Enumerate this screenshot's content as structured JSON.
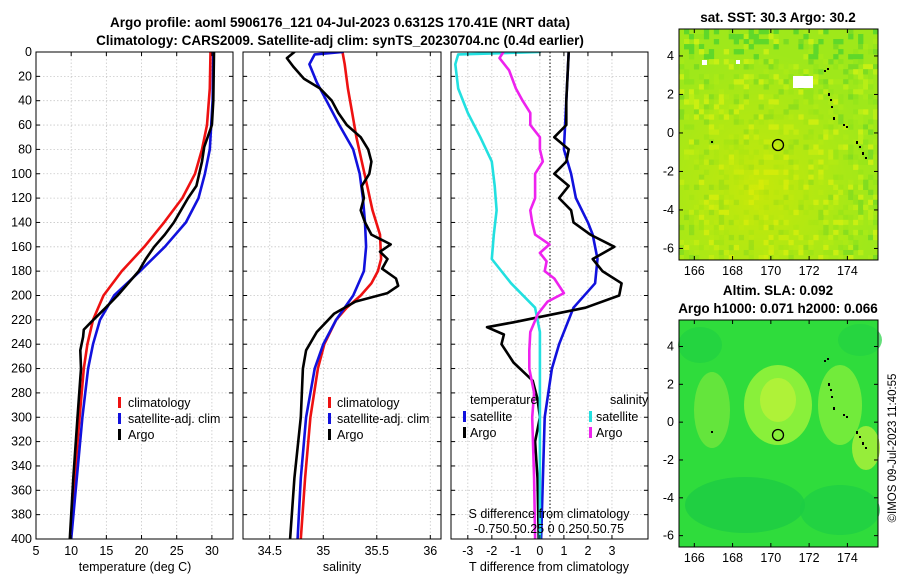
{
  "header": {
    "title_line1": "Argo profile: aoml 5906176_121 04-Jul-2023 0.6312S 170.41E (NRT data)",
    "title_line2": "Climatology: CARS2009. Satellite-adj clim: synTS_20230704.nc (0.4d earlier)"
  },
  "watermark": "©IMOS 09-Jul-2023 11:40:55",
  "colors": {
    "climatology": "#ee1111",
    "satellite": "#1111dd",
    "argo": "#000000",
    "s_satellite": "#22e0e0",
    "s_argo": "#ee22ee"
  },
  "chart_data": [
    {
      "type": "line",
      "title": "",
      "xlabel": "temperature (deg C)",
      "xlim": [
        5,
        33
      ],
      "xticks": [
        "5",
        "10",
        "15",
        "20",
        "25",
        "30"
      ],
      "ylim": [
        0,
        400
      ],
      "yticks": [
        "0",
        "20",
        "40",
        "60",
        "80",
        "100",
        "120",
        "140",
        "160",
        "180",
        "200",
        "220",
        "240",
        "260",
        "280",
        "300",
        "320",
        "340",
        "360",
        "380",
        "400"
      ],
      "legend": [
        "climatology",
        "satellite-adj. clim",
        "Argo"
      ],
      "series": [
        {
          "name": "climatology",
          "color": "#ee1111",
          "depth": [
            0,
            30,
            60,
            80,
            100,
            120,
            140,
            160,
            180,
            200,
            220,
            240,
            260,
            300,
            350,
            400
          ],
          "values": [
            29.8,
            29.7,
            29.3,
            28.6,
            27.6,
            25.8,
            23.2,
            20.4,
            17.2,
            14.6,
            13.1,
            12.3,
            11.8,
            11.2,
            10.5,
            9.9
          ]
        },
        {
          "name": "satellite-adj. clim",
          "color": "#1111dd",
          "depth": [
            0,
            40,
            80,
            100,
            120,
            140,
            160,
            180,
            200,
            220,
            240,
            260,
            300,
            350,
            400
          ],
          "values": [
            30.2,
            30.1,
            29.7,
            29.0,
            28.1,
            26.3,
            23.3,
            19.8,
            16.1,
            14.1,
            13.1,
            12.4,
            11.6,
            10.8,
            10.0
          ]
        },
        {
          "name": "Argo",
          "color": "#000000",
          "depth": [
            0,
            40,
            60,
            78,
            90,
            100,
            110,
            120,
            130,
            140,
            150,
            160,
            170,
            180,
            190,
            200,
            210,
            222,
            228,
            234,
            245,
            260,
            300,
            350,
            400
          ],
          "values": [
            30.3,
            30.2,
            30.0,
            28.9,
            28.6,
            28.2,
            27.8,
            26.6,
            25.6,
            24.6,
            23.3,
            21.8,
            20.6,
            19.6,
            18.1,
            16.6,
            14.9,
            12.8,
            11.8,
            11.7,
            11.3,
            11.4,
            10.9,
            10.3,
            9.8
          ]
        }
      ]
    },
    {
      "type": "line",
      "xlabel": "salinity",
      "xlim": [
        34.25,
        36.1
      ],
      "xticks": [
        "34.5",
        "35",
        "35.5",
        "36"
      ],
      "ylim": [
        0,
        400
      ],
      "legend": [
        "climatology",
        "satellite-adj. clim",
        "Argo"
      ],
      "series": [
        {
          "name": "climatology",
          "color": "#ee1111",
          "depth": [
            0,
            10,
            30,
            50,
            70,
            90,
            110,
            130,
            150,
            170,
            180,
            190,
            200,
            210,
            220,
            240,
            260,
            300,
            350,
            400
          ],
          "values": [
            35.18,
            35.2,
            35.23,
            35.27,
            35.31,
            35.36,
            35.41,
            35.46,
            35.53,
            35.54,
            35.51,
            35.45,
            35.35,
            35.22,
            35.12,
            35.01,
            34.95,
            34.88,
            34.83,
            34.79
          ]
        },
        {
          "name": "satellite-adj. clim",
          "color": "#1111dd",
          "depth": [
            0,
            2,
            10,
            25,
            40,
            60,
            80,
            100,
            120,
            140,
            160,
            180,
            200,
            220,
            240,
            260,
            300,
            350,
            400
          ],
          "values": [
            35.18,
            34.92,
            34.87,
            34.94,
            35.03,
            35.15,
            35.28,
            35.34,
            35.37,
            35.39,
            35.4,
            35.38,
            35.28,
            35.12,
            35.0,
            34.92,
            34.84,
            34.79,
            34.76
          ]
        },
        {
          "name": "Argo",
          "color": "#000000",
          "depth": [
            0,
            5,
            12,
            22,
            30,
            40,
            50,
            60,
            70,
            80,
            90,
            100,
            110,
            120,
            130,
            140,
            150,
            158,
            164,
            170,
            178,
            186,
            192,
            198,
            205,
            215,
            230,
            245,
            260,
            300,
            350,
            400
          ],
          "values": [
            34.73,
            34.66,
            34.72,
            34.82,
            34.97,
            35.08,
            35.14,
            35.22,
            35.35,
            35.42,
            35.45,
            35.43,
            35.36,
            35.38,
            35.35,
            35.39,
            35.45,
            35.63,
            35.53,
            35.6,
            35.55,
            35.68,
            35.7,
            35.6,
            35.3,
            35.1,
            34.94,
            34.84,
            34.81,
            34.79,
            34.73,
            34.69
          ]
        }
      ]
    },
    {
      "type": "line",
      "xlabel": "T difference from climatology",
      "top_axis_label": "S difference from climatology",
      "xlim": [
        -3.7,
        4.5
      ],
      "xticks": [
        "-3",
        "-2",
        "-1",
        "0",
        "1",
        "2",
        "3"
      ],
      "top_ticks": "-0.750.50.25  0  0.250.50.75",
      "ylim": [
        0,
        400
      ],
      "legend_left_title": "temperature",
      "legend_right_title": "salinity",
      "legend": [
        "satellite",
        "Argo",
        "satellite",
        "Argo"
      ],
      "series": [
        {
          "name": "T satellite",
          "color": "#1111dd",
          "depth": [
            0,
            40,
            80,
            100,
            120,
            140,
            150,
            170,
            190,
            210,
            240,
            260,
            300,
            400
          ],
          "values": [
            1.2,
            1.1,
            1.0,
            1.3,
            1.5,
            2.0,
            2.2,
            2.4,
            2.3,
            1.4,
            0.8,
            0.5,
            0.2,
            0.05
          ]
        },
        {
          "name": "T Argo",
          "color": "#000000",
          "depth": [
            0,
            40,
            60,
            70,
            80,
            90,
            100,
            110,
            120,
            130,
            140,
            150,
            160,
            170,
            180,
            190,
            200,
            210,
            222,
            226,
            232,
            240,
            255,
            270,
            285,
            300,
            320,
            350,
            400
          ],
          "values": [
            1.2,
            1.1,
            1.1,
            0.6,
            1.2,
            1.1,
            0.6,
            1.2,
            0.8,
            1.3,
            1.4,
            2.1,
            3.1,
            2.2,
            2.6,
            3.4,
            3.3,
            1.9,
            -1.1,
            -2.2,
            -1.5,
            -1.6,
            -1.1,
            -0.3,
            -0.1,
            0.0,
            -0.2,
            -0.1,
            -0.05
          ]
        },
        {
          "name": "S satellite",
          "color": "#22e0e0",
          "depth": [
            0,
            2,
            10,
            30,
            50,
            70,
            90,
            110,
            130,
            150,
            170,
            190,
            210,
            230,
            260,
            300,
            400
          ],
          "values": [
            0.0,
            -0.85,
            -0.88,
            -0.85,
            -0.75,
            -0.62,
            -0.5,
            -0.47,
            -0.45,
            -0.48,
            -0.5,
            -0.3,
            -0.05,
            0.0,
            0.0,
            0.0,
            0.0
          ]
        },
        {
          "name": "S Argo",
          "color": "#ee22ee",
          "depth": [
            0,
            5,
            15,
            30,
            40,
            50,
            60,
            70,
            80,
            90,
            100,
            110,
            120,
            130,
            140,
            150,
            158,
            165,
            172,
            180,
            186,
            192,
            198,
            205,
            215,
            230,
            245,
            260,
            280,
            300,
            350,
            400
          ],
          "values": [
            -0.38,
            -0.42,
            -0.32,
            -0.25,
            -0.18,
            -0.1,
            -0.1,
            0.0,
            0.0,
            0.03,
            -0.05,
            -0.05,
            -0.05,
            -0.1,
            -0.08,
            -0.05,
            0.1,
            0.0,
            0.07,
            0.05,
            0.15,
            0.2,
            0.25,
            0.08,
            -0.02,
            -0.1,
            -0.11,
            -0.11,
            -0.06,
            -0.08,
            -0.06,
            -0.05
          ]
        }
      ]
    },
    {
      "type": "heatmap",
      "title": "sat. SST: 30.3 Argo: 30.2",
      "xlim": [
        165.2,
        175.6
      ],
      "ylim": [
        -6.6,
        5.4
      ],
      "xticks": [
        "166",
        "168",
        "170",
        "172",
        "174"
      ],
      "yticks": [
        "4",
        "2",
        "0",
        "-2",
        "-4",
        "-6"
      ],
      "profile_location": {
        "lon": 170.41,
        "lat": -0.63
      }
    },
    {
      "type": "heatmap",
      "title_line1": "Altim. SLA: 0.092",
      "title_line2": "Argo h1000: 0.071 h2000: 0.066",
      "xlim": [
        165.2,
        175.6
      ],
      "ylim": [
        -6.6,
        5.4
      ],
      "xticks": [
        "166",
        "168",
        "170",
        "172",
        "174"
      ],
      "yticks": [
        "4",
        "2",
        "0",
        "-2",
        "-4",
        "-6"
      ],
      "profile_location": {
        "lon": 170.41,
        "lat": -0.63
      }
    }
  ]
}
